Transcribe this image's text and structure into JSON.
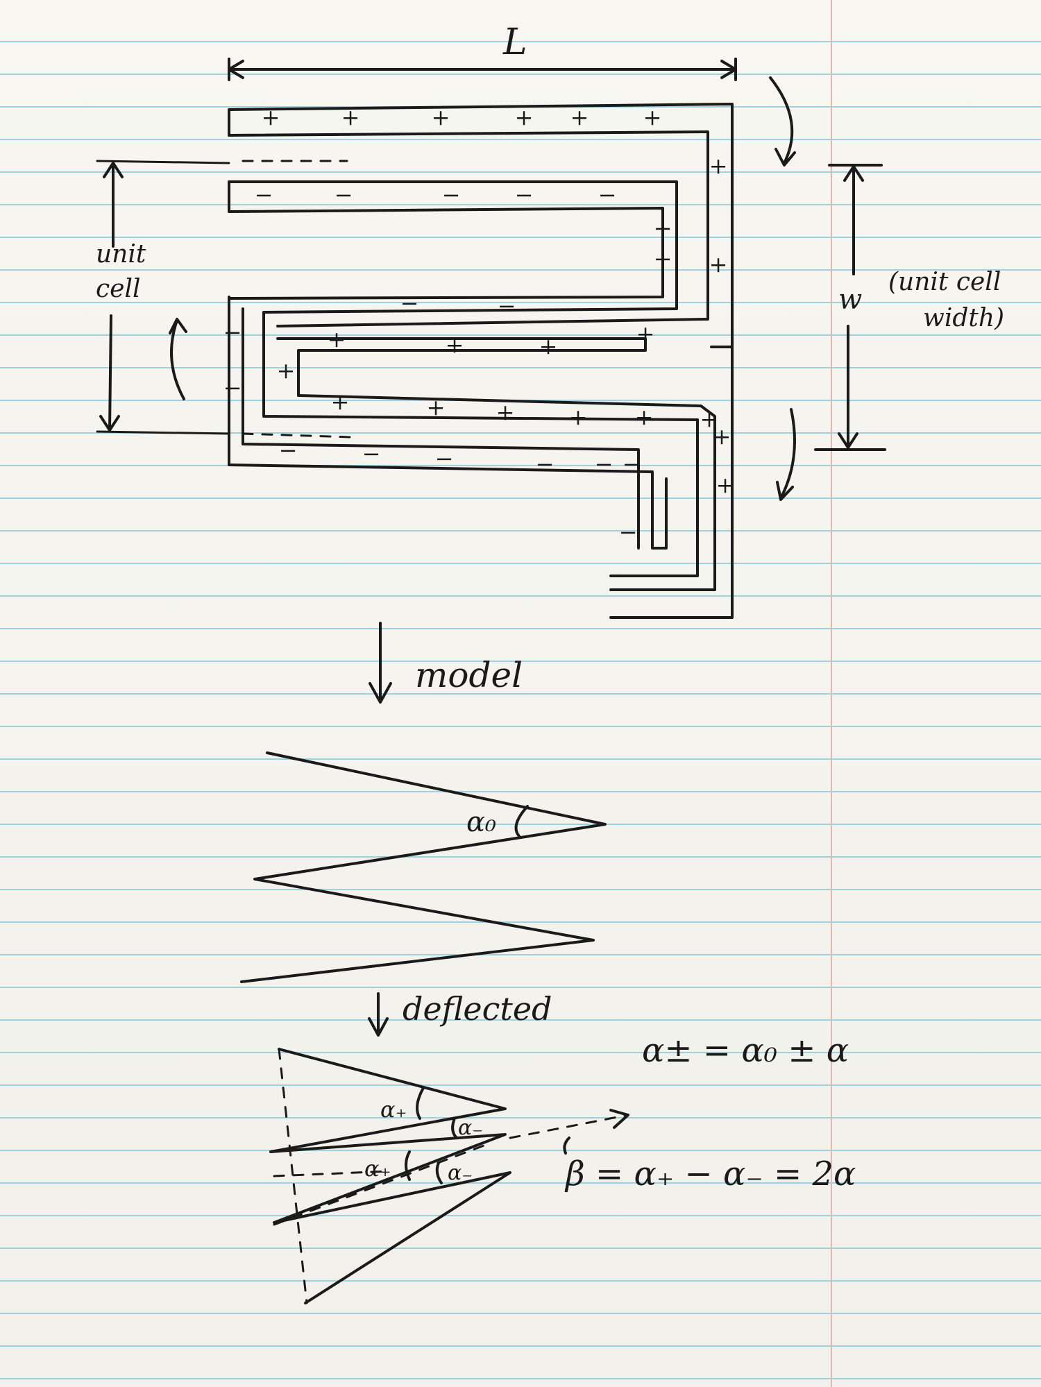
{
  "labels": {
    "length": "L",
    "unit_cell_line1": "unit",
    "unit_cell_line2": "cell",
    "width_symbol": "w",
    "width_note_line1": "(unit cell",
    "width_note_line2": "width)",
    "model": "model",
    "deflected": "deflected",
    "alpha0": "α₀",
    "alpha_plus": "α₊",
    "alpha_minus": "α₋",
    "alpha_plus_2": "α₊",
    "alpha_minus_2": "α₋",
    "equation_alpha": "α± = α₀ ± α",
    "equation_beta": "β = α₊ − α₋ = 2α"
  },
  "charges": {
    "top_strip": [
      "+",
      "+",
      "+",
      "+",
      "+",
      "+"
    ],
    "first_neg_strip": [
      "−",
      "−",
      "−",
      "−",
      "−"
    ],
    "right_outer": [
      "+",
      "+"
    ],
    "right_inner": [
      "−",
      "−"
    ],
    "second_neg_strip": [
      "−",
      "−",
      "−",
      "−"
    ],
    "left_inner": [
      "−",
      "−"
    ],
    "plus_strip_upper": [
      "+",
      "+",
      "+",
      "+"
    ],
    "plus_strip_lower": [
      "+",
      "+",
      "+",
      "+",
      "+",
      "+"
    ],
    "left_plus": [
      "+"
    ],
    "bottom_neg_strip": [
      "−",
      "−",
      "−",
      "−",
      "−",
      "−"
    ],
    "right_lower_outer": [
      "+",
      "+"
    ],
    "right_lower_inner": [
      "−"
    ]
  },
  "colors": {
    "paper": "#f5f4ef",
    "rule_line": "#9fd0de",
    "margin_line": "#e7b6b6",
    "ink": "#1a1a1a"
  }
}
